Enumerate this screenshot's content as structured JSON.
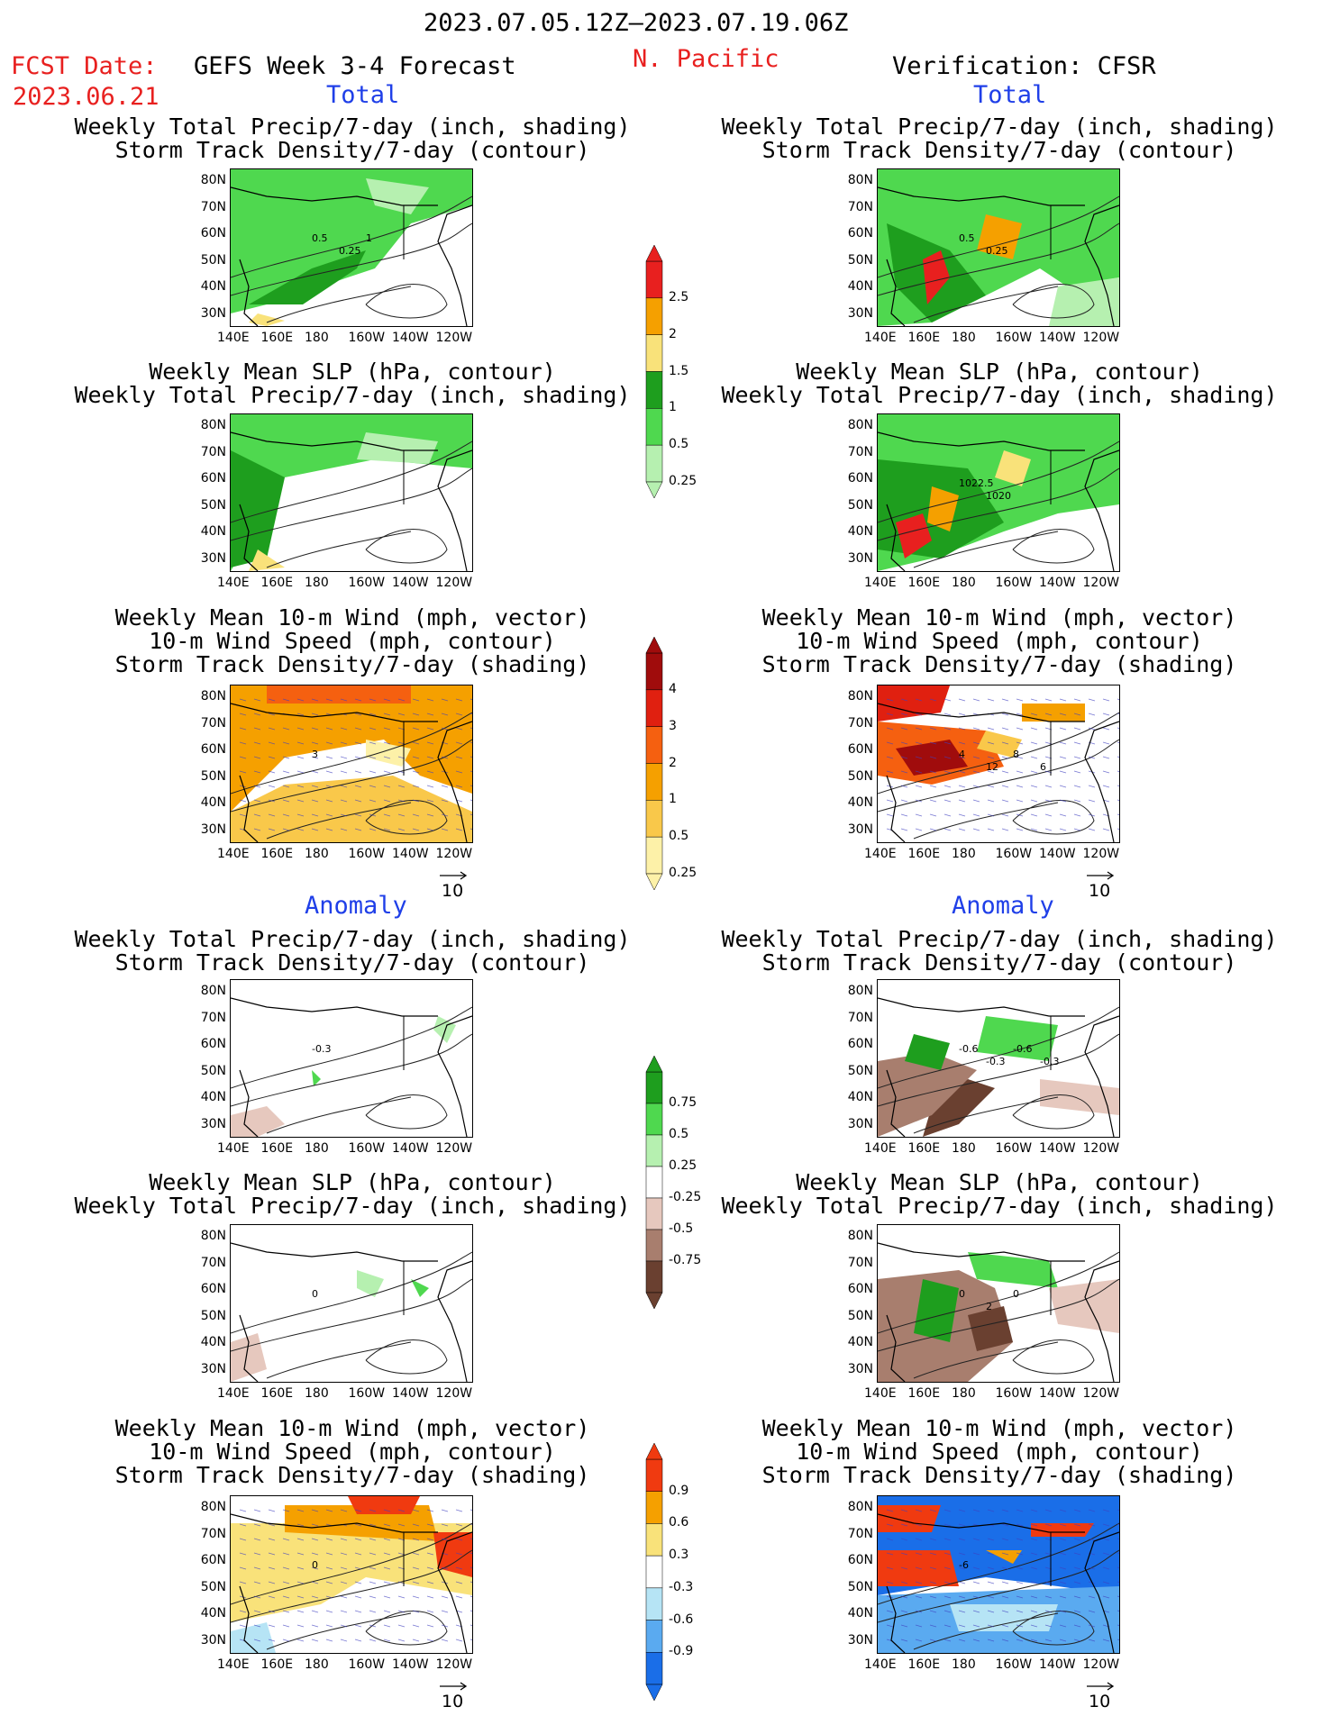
{
  "header": {
    "period": "2023.07.05.12Z–2023.07.19.06Z",
    "fcst_label": "FCST Date:",
    "fcst_date": "2023.06.21",
    "model": "GEFS Week 3-4 Forecast",
    "region": "N. Pacific",
    "verification": "Verification: CFSR",
    "total_left": "Total",
    "total_right": "Total",
    "anomaly_left": "Anomaly",
    "anomaly_right": "Anomaly"
  },
  "titles": {
    "precip_storm": [
      "Weekly Total Precip/7-day (inch, shading)",
      "Storm Track Density/7-day (contour)"
    ],
    "slp_precip": [
      "Weekly Mean SLP (hPa, contour)",
      "Weekly Total Precip/7-day (inch, shading)"
    ],
    "wind_storm": [
      "Weekly Mean 10-m Wind (mph, vector)",
      "10-m Wind Speed (mph, contour)",
      "Storm Track Density/7-day (shading)"
    ]
  },
  "axes": {
    "lat": [
      "80N",
      "70N",
      "60N",
      "50N",
      "40N",
      "30N"
    ],
    "lon": [
      "140E",
      "160E",
      "180",
      "160W",
      "140W",
      "120W"
    ]
  },
  "vector_ref": "10",
  "colorbars": {
    "precip_total": {
      "labels": [
        "2.5",
        "2",
        "1.5",
        "1",
        "0.5",
        "0.25"
      ],
      "colors": [
        "#e8201f",
        "#f5a000",
        "#f9e27a",
        "#1e9e1e",
        "#4fd84f",
        "#b6f0b0"
      ]
    },
    "storm_total": {
      "labels": [
        "4",
        "3",
        "2",
        "1",
        "0.5",
        "0.25"
      ],
      "colors": [
        "#a00c0c",
        "#e02010",
        "#f56010",
        "#f5a000",
        "#f9c84a",
        "#fdf1a8"
      ]
    },
    "precip_anom": {
      "labels": [
        "0.75",
        "0.5",
        "0.25",
        "-0.25",
        "-0.5",
        "-0.75"
      ],
      "colors": [
        "#1e9e1e",
        "#4fd84f",
        "#b6f0b0",
        "#ffffff",
        "#e6c8be",
        "#a87e6e",
        "#6a4030"
      ]
    },
    "storm_anom": {
      "labels": [
        "0.9",
        "0.6",
        "0.3",
        "-0.3",
        "-0.6",
        "-0.9"
      ],
      "colors": [
        "#f03a10",
        "#f5a000",
        "#f9e27a",
        "#ffffff",
        "#b6e4f5",
        "#5aaaf0",
        "#1a6ee8"
      ]
    }
  },
  "contour_labels": {
    "p1": [
      "0.5",
      "0.25",
      "1"
    ],
    "p2": [
      "0.5",
      "0.25"
    ],
    "p4": [
      "1022.5",
      "1020"
    ],
    "p5": [
      "3"
    ],
    "p6": [
      "4",
      "12",
      "8",
      "6"
    ],
    "p7": [
      "-0.3"
    ],
    "p8": [
      "-0.6",
      "-0.3",
      "-0.6",
      "-0.3"
    ],
    "p9": [
      "0"
    ],
    "p10": [
      "0",
      "2",
      "0"
    ],
    "p11": [
      "0"
    ],
    "p12": [
      "-6"
    ]
  },
  "colors": {
    "accent_red": "#e8201f",
    "accent_blue": "#1f3fe8"
  }
}
